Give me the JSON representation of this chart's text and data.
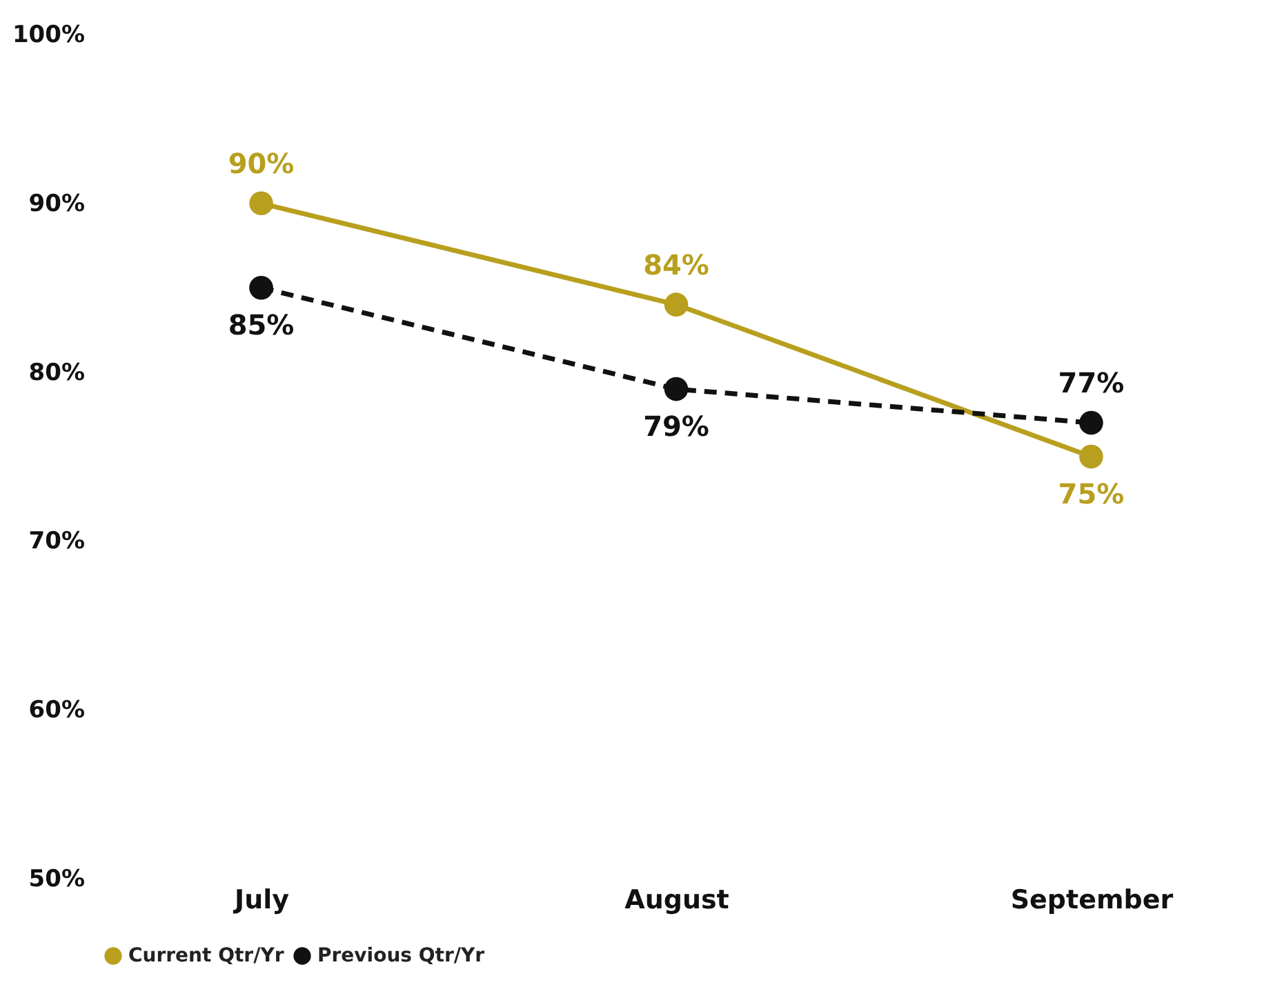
{
  "chart_data": {
    "type": "line",
    "categories": [
      "July",
      "August",
      "September"
    ],
    "series": [
      {
        "name": "Current Qtr/Yr",
        "color": "#b89f1e",
        "values": [
          90,
          84,
          75
        ],
        "value_labels": [
          "90%",
          "84%",
          "75%"
        ],
        "line_style": "solid"
      },
      {
        "name": "Previous Qtr/Yr",
        "color": "#111111",
        "values": [
          85,
          79,
          77
        ],
        "value_labels": [
          "85%",
          "79%",
          "77%"
        ],
        "line_style": "dashed"
      }
    ],
    "ylim": [
      50,
      100
    ],
    "yticks": [
      {
        "value": 50,
        "label": "50%"
      },
      {
        "value": 60,
        "label": "60%"
      },
      {
        "value": 70,
        "label": "70%"
      },
      {
        "value": 80,
        "label": "80%"
      },
      {
        "value": 90,
        "label": "90%"
      },
      {
        "value": 100,
        "label": "100%"
      }
    ],
    "grid": false,
    "legend": "bottom",
    "marker": "circle"
  }
}
